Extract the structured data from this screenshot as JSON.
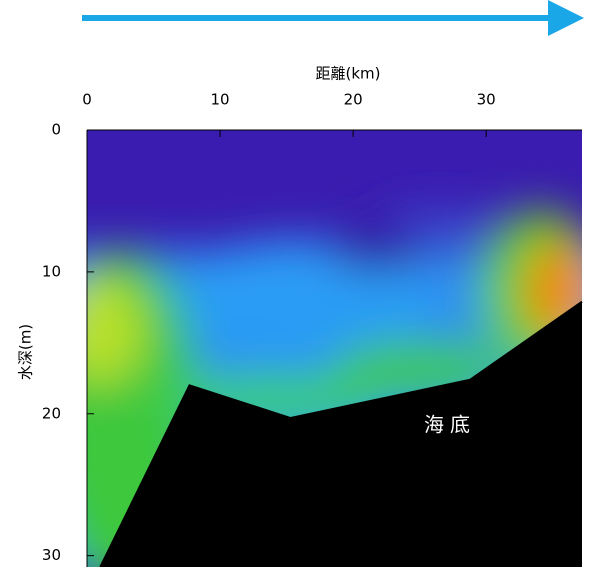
{
  "chart_data": {
    "type": "contour",
    "xlabel": "距離(km)",
    "ylabel": "水深(m)",
    "annotation": "海底",
    "xlim": [
      0,
      37.2
    ],
    "ylim": [
      0,
      30.8
    ],
    "xticks": [
      0,
      10,
      20,
      30
    ],
    "yticks": [
      0,
      10,
      20,
      30
    ],
    "seafloor": {
      "x": [
        1,
        7.7,
        15.3,
        28.8,
        37.2
      ],
      "values": [
        30.8,
        18,
        20.3,
        17.6,
        12.1
      ],
      "color": "#000000"
    }
  }
}
